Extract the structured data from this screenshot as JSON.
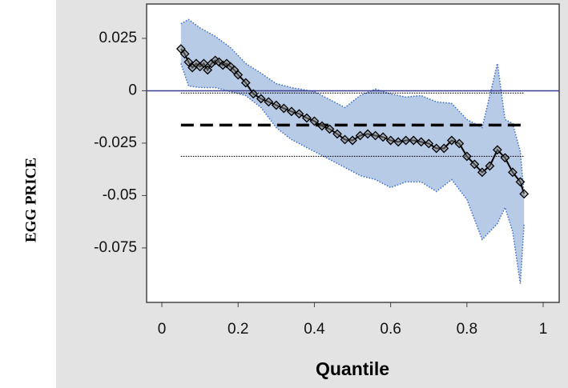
{
  "chart_data": {
    "type": "quantile-process",
    "x_label": "Quantile",
    "y_label": "EGG PRICE",
    "x": [
      0.05,
      0.06,
      0.07,
      0.08,
      0.09,
      0.1,
      0.11,
      0.12,
      0.13,
      0.14,
      0.15,
      0.16,
      0.17,
      0.18,
      0.19,
      0.2,
      0.22,
      0.24,
      0.26,
      0.28,
      0.3,
      0.32,
      0.34,
      0.36,
      0.38,
      0.4,
      0.42,
      0.44,
      0.46,
      0.48,
      0.5,
      0.52,
      0.54,
      0.56,
      0.58,
      0.6,
      0.62,
      0.64,
      0.66,
      0.68,
      0.7,
      0.72,
      0.74,
      0.76,
      0.78,
      0.8,
      0.82,
      0.84,
      0.86,
      0.88,
      0.9,
      0.92,
      0.94,
      0.95
    ],
    "values": [
      0.02,
      0.0176,
      0.0137,
      0.011,
      0.013,
      0.0115,
      0.013,
      0.0099,
      0.013,
      0.0145,
      0.0137,
      0.0122,
      0.013,
      0.0115,
      0.0099,
      0.0076,
      0.0038,
      -0.0015,
      -0.0038,
      -0.0053,
      -0.0069,
      -0.0084,
      -0.0099,
      -0.011,
      -0.013,
      -0.0145,
      -0.0168,
      -0.0183,
      -0.0206,
      -0.0233,
      -0.0237,
      -0.0214,
      -0.0206,
      -0.0214,
      -0.0221,
      -0.0237,
      -0.0244,
      -0.0237,
      -0.0237,
      -0.0244,
      -0.0252,
      -0.0275,
      -0.0275,
      -0.0237,
      -0.0252,
      -0.0313,
      -0.0351,
      -0.0389,
      -0.0359,
      -0.0282,
      -0.032,
      -0.0389,
      -0.0435,
      -0.0492
    ],
    "band": {
      "x": [
        0.05,
        0.07,
        0.1,
        0.14,
        0.18,
        0.22,
        0.26,
        0.3,
        0.34,
        0.4,
        0.44,
        0.48,
        0.52,
        0.56,
        0.6,
        0.64,
        0.68,
        0.72,
        0.76,
        0.8,
        0.84,
        0.86,
        0.88,
        0.9,
        0.92,
        0.94,
        0.95
      ],
      "upper": [
        0.032,
        0.034,
        0.03,
        0.026,
        0.0206,
        0.013,
        0.0084,
        0.0034,
        0.0015,
        -0.0004,
        -0.0042,
        -0.008,
        -0.0023,
        0.0008,
        -0.0015,
        -0.003,
        -0.0023,
        -0.0053,
        -0.006,
        -0.0137,
        -0.0176,
        -0.0023,
        0.013,
        -0.0137,
        -0.0156,
        -0.029,
        -0.05
      ],
      "lower": [
        0.013,
        0.0023,
        0.0015,
        0.0015,
        -0.0004,
        -0.0023,
        -0.008,
        -0.0176,
        -0.0233,
        -0.029,
        -0.0328,
        -0.0366,
        -0.0405,
        -0.0424,
        -0.0462,
        -0.0435,
        -0.0435,
        -0.0481,
        -0.0424,
        -0.0519,
        -0.071,
        -0.0672,
        -0.0634,
        -0.0557,
        -0.0672,
        -0.092,
        -0.0634
      ]
    },
    "reference": 0,
    "ols": -0.0164,
    "ols_ci": [
      -0.0011,
      -0.0313
    ],
    "ols_range": [
      0.05,
      0.95
    ],
    "xlim": [
      -0.04,
      1.042
    ],
    "ylim": [
      -0.101,
      0.0414
    ],
    "xticks": [
      0,
      0.2,
      0.4,
      0.6,
      0.8,
      1
    ],
    "yticks": [
      0.025,
      0,
      -0.025,
      -0.05,
      -0.075
    ]
  }
}
